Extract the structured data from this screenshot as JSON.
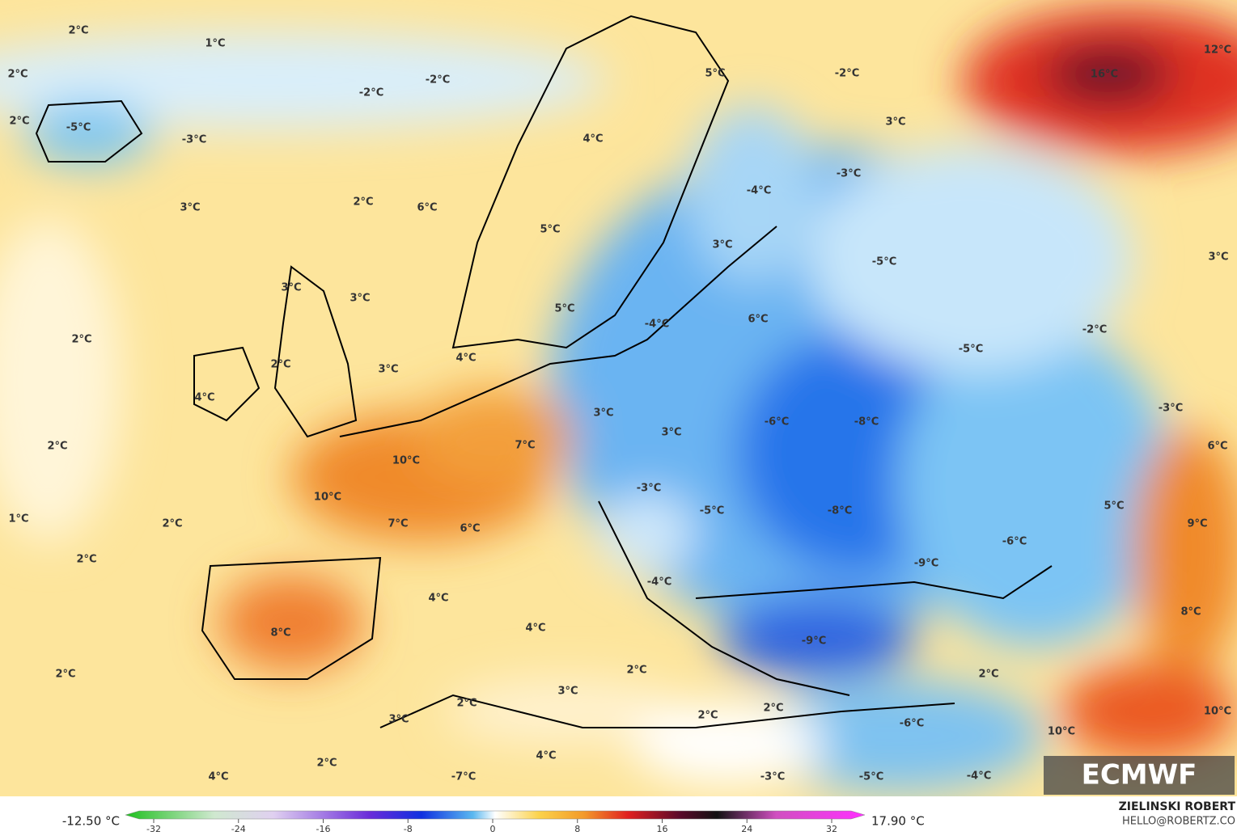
{
  "map": {
    "labels": [
      "2°C",
      "1°C",
      "2°C",
      "-2°C",
      "-2°C",
      "-5°C",
      "-3°C",
      "2°C",
      "3°C",
      "2°C",
      "6°C",
      "4°C",
      "5°C",
      "-2°C",
      "3°C",
      "-3°C",
      "-4°C",
      "16°C",
      "12°C",
      "5°C",
      "3°C",
      "-5°C",
      "3°C",
      "3°C",
      "3°C",
      "5°C",
      "2°C",
      "-4°C",
      "6°C",
      "-2°C",
      "-5°C",
      "4°C",
      "2°C",
      "3°C",
      "4°C",
      "3°C",
      "3°C",
      "-6°C",
      "-8°C",
      "-3°C",
      "2°C",
      "10°C",
      "7°C",
      "6°C",
      "10°C",
      "-3°C",
      "-5°C",
      "-8°C",
      "5°C",
      "1°C",
      "2°C",
      "7°C",
      "6°C",
      "9°C",
      "-6°C",
      "-9°C",
      "2°C",
      "-4°C",
      "4°C",
      "8°C",
      "8°C",
      "4°C",
      "-9°C",
      "2°C",
      "2°C",
      "2°C",
      "3°C",
      "2°C",
      "2°C",
      "2°C",
      "3°C",
      "10°C",
      "-6°C",
      "10°C",
      "4°C",
      "2°C",
      "4°C",
      "-7°C",
      "-3°C",
      "-5°C",
      "-4°C"
    ]
  },
  "colorbar": {
    "ticks": [
      -32,
      -24,
      -16,
      -8,
      0,
      8,
      16,
      24,
      32
    ],
    "min_label": "-12.50 °C",
    "max_label": "17.90 °C"
  },
  "credits": {
    "logo": "ECMWF",
    "author": "ZIELINSKI ROBERT",
    "email": "HELLO@ROBERTZ.CO"
  }
}
